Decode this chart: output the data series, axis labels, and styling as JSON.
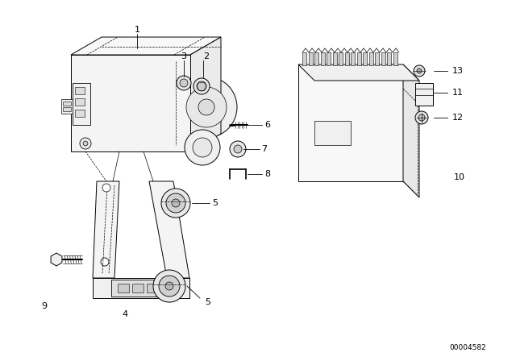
{
  "bg_color": "#ffffff",
  "line_color": "#000000",
  "figsize": [
    6.4,
    4.48
  ],
  "dpi": 100,
  "catalog_number": "00004582"
}
